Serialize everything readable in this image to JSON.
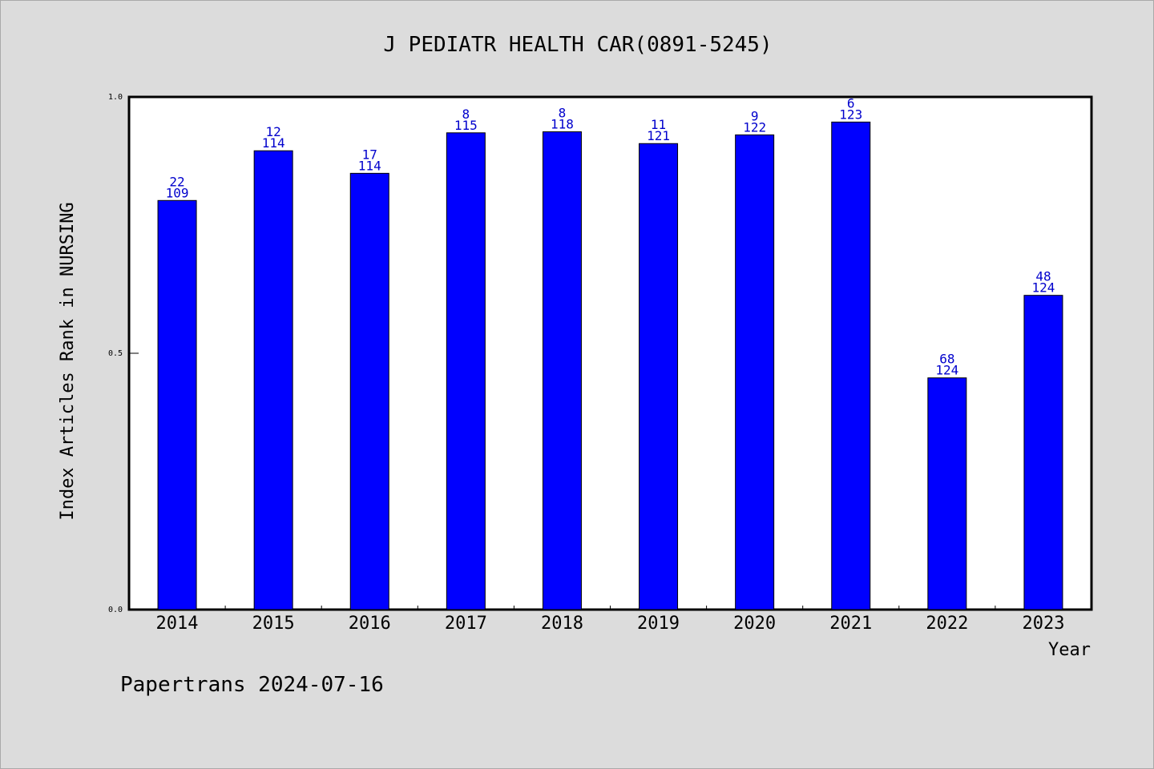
{
  "chart_data": {
    "type": "bar",
    "title": "J PEDIATR HEALTH CAR(0891-5245)",
    "xlabel": "Year",
    "ylabel": "Index Articles Rank in NURSING",
    "ylim": [
      0,
      1
    ],
    "yticks": [
      "0.0",
      "0.5",
      "1.0"
    ],
    "grid": false,
    "bar_color": "#0000ff",
    "label_color": "#0000cc",
    "categories": [
      "2014",
      "2015",
      "2016",
      "2017",
      "2018",
      "2019",
      "2020",
      "2021",
      "2022",
      "2023"
    ],
    "values": [
      0.798,
      0.895,
      0.851,
      0.93,
      0.932,
      0.909,
      0.926,
      0.951,
      0.452,
      0.613
    ],
    "rank_labels": [
      "22",
      "12",
      "17",
      "8",
      "8",
      "11",
      "9",
      "6",
      "68",
      "48"
    ],
    "total_labels": [
      "109",
      "114",
      "114",
      "115",
      "118",
      "121",
      "122",
      "123",
      "124",
      "124"
    ]
  },
  "footer": {
    "credit": "Papertrans 2024-07-16"
  }
}
